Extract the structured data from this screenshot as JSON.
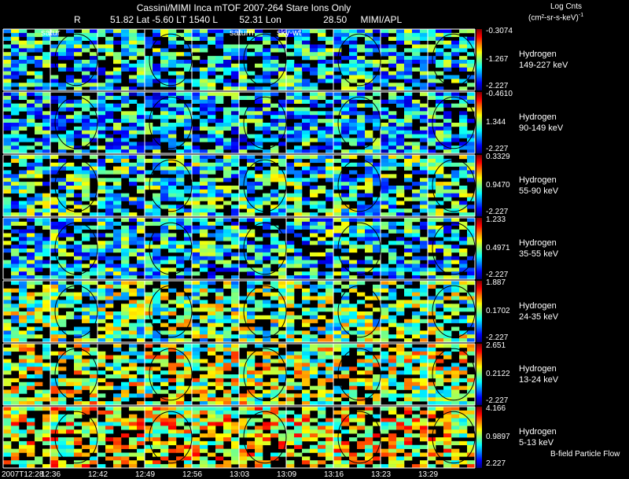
{
  "header": {
    "title": "Cassini/MIMI Inca mTOF  2007-264   Stare   Ions Only",
    "subtitle_fields": [
      "R",
      "51.82 Lat -5.60 LT 1540 L",
      "52.31 Lon",
      "28.50",
      "MIMI/APL"
    ],
    "units_title": "Log Cnts",
    "units_sub": "(cm²-sr-s-keV)",
    "units_sup": "-1"
  },
  "top_labels": [
    {
      "text": "satur",
      "column": 1
    },
    {
      "text": "saturn",
      "column": 5
    },
    {
      "text": "sky-wt",
      "column": 6
    }
  ],
  "footer_note": "B-field Particle Flow",
  "x_ticks": [
    "2007T12:28",
    "12:36",
    "12:42",
    "12:49",
    "12:56",
    "13:03",
    "13:09",
    "13:16",
    "13:23",
    "13:29"
  ],
  "chart_data": {
    "type": "heatmap",
    "columns": 10,
    "rows": [
      {
        "species": "Hydrogen",
        "range": "149-227 keV",
        "cb_max": "-0.3074",
        "cb_mid": "-1.267",
        "cb_min": "-2.227",
        "level": 0.35
      },
      {
        "species": "Hydrogen",
        "range": "90-149 keV",
        "cb_max": "-0.4610",
        "cb_mid": "1.344",
        "cb_min": "-2.227",
        "level": 0.32
      },
      {
        "species": "Hydrogen",
        "range": "55-90 keV",
        "cb_max": "0.3329",
        "cb_mid": "0.9470",
        "cb_min": "-2.227",
        "level": 0.4
      },
      {
        "species": "Hydrogen",
        "range": "35-55 keV",
        "cb_max": "1.233",
        "cb_mid": "0.4971",
        "cb_min": "-2.227",
        "level": 0.36
      },
      {
        "species": "Hydrogen",
        "range": "24-35 keV",
        "cb_max": "1.887",
        "cb_mid": "0.1702",
        "cb_min": "-2.227",
        "level": 0.48
      },
      {
        "species": "Hydrogen",
        "range": "13-24 keV",
        "cb_max": "2.651",
        "cb_mid": "0.2122",
        "cb_min": "-2.227",
        "level": 0.55
      },
      {
        "species": "Hydrogen",
        "range": "5-13 keV",
        "cb_max": "4.166",
        "cb_mid": "0.9897",
        "cb_min": "2.227",
        "level": 0.62
      }
    ]
  }
}
